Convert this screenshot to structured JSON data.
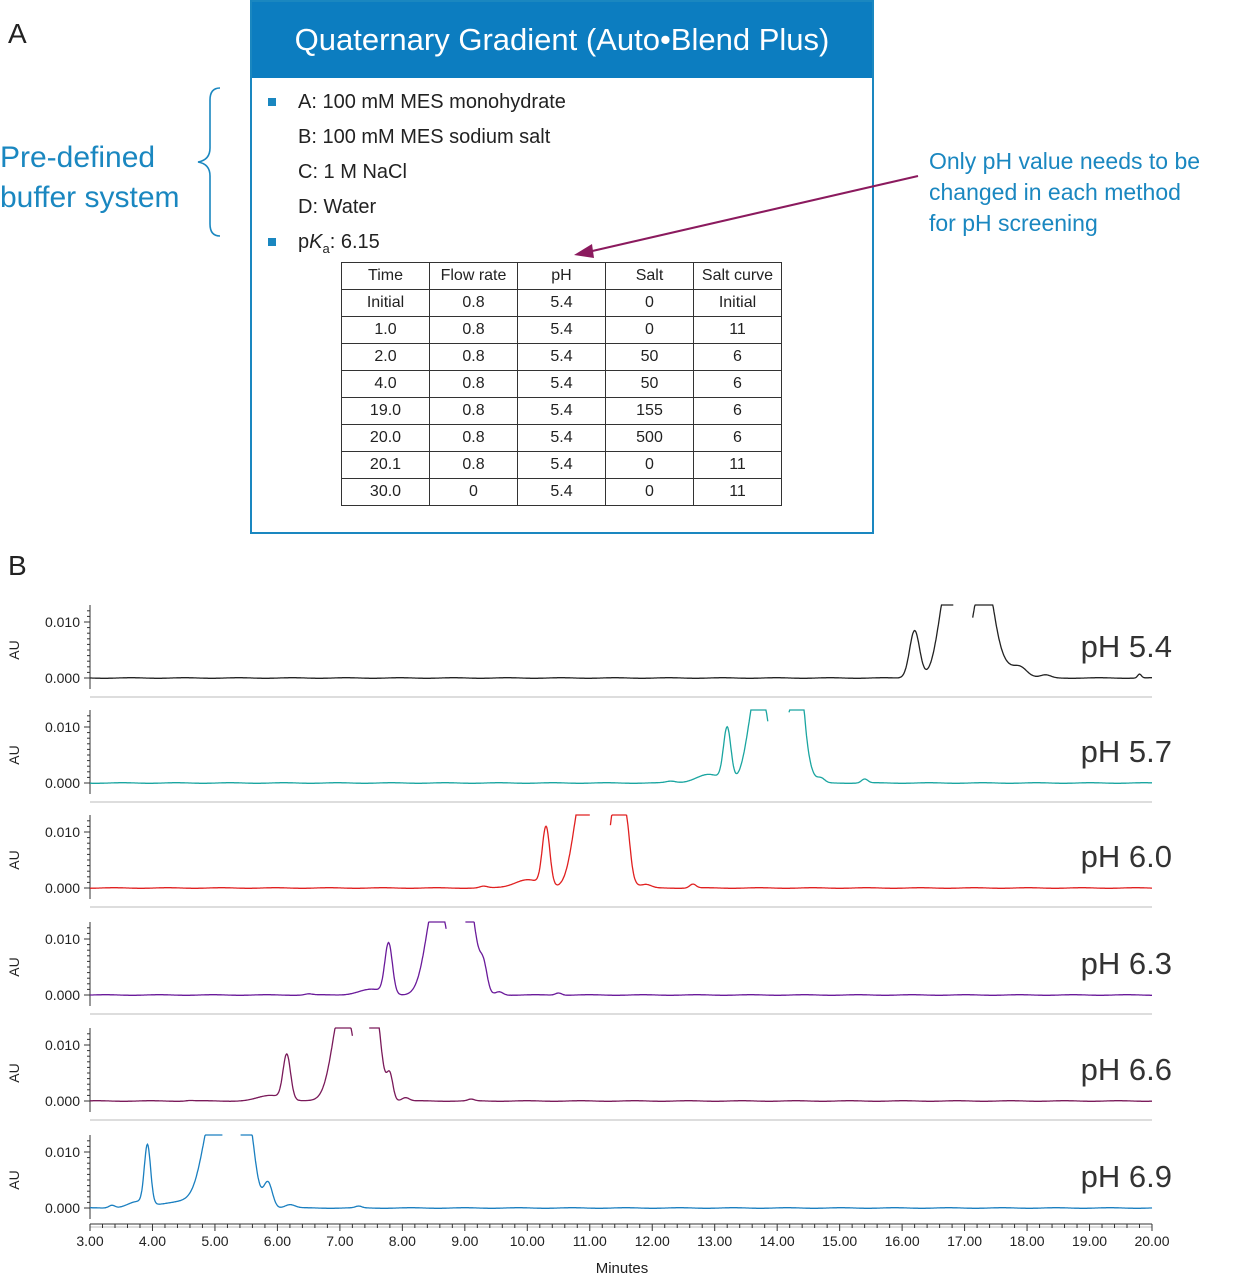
{
  "panel_a": {
    "letter": "A",
    "header": "Quaternary Gradient (Auto•Blend Plus)",
    "side_label_lines": [
      "Pre-defined",
      "buffer system"
    ],
    "buffers": [
      "A: 100 mM MES monohydrate",
      "B: 100 mM MES sodium salt",
      "C: 1 M NaCl",
      "D: Water"
    ],
    "pka": {
      "prefix": "p",
      "k": "K",
      "sub": "a",
      "value": ": 6.15"
    },
    "annotation_lines": [
      "Only pH value needs to be",
      "changed in each method",
      "for pH screening"
    ],
    "colors": {
      "accent": "#1a87c0",
      "header_bg": "#0c7dc0",
      "arrow": "#8b1a5e"
    },
    "table": {
      "headers": [
        "Time",
        "Flow rate",
        "pH",
        "Salt",
        "Salt curve"
      ],
      "rows": [
        [
          "Initial",
          "0.8",
          "5.4",
          "0",
          "Initial"
        ],
        [
          "1.0",
          "0.8",
          "5.4",
          "0",
          "11"
        ],
        [
          "2.0",
          "0.8",
          "5.4",
          "50",
          "6"
        ],
        [
          "4.0",
          "0.8",
          "5.4",
          "50",
          "6"
        ],
        [
          "19.0",
          "0.8",
          "5.4",
          "155",
          "6"
        ],
        [
          "20.0",
          "0.8",
          "5.4",
          "500",
          "6"
        ],
        [
          "20.1",
          "0.8",
          "5.4",
          "0",
          "11"
        ],
        [
          "30.0",
          "0",
          "5.4",
          "0",
          "11"
        ]
      ]
    }
  },
  "panel_b": {
    "letter": "B",
    "chart_data": {
      "type": "line",
      "xlabel": "Minutes",
      "ylabel": "AU",
      "xlim": [
        3.0,
        20.0
      ],
      "ylim": [
        0.0,
        0.012
      ],
      "x_ticks": [
        "3.00",
        "4.00",
        "5.00",
        "6.00",
        "7.00",
        "8.00",
        "9.00",
        "10.00",
        "11.00",
        "12.00",
        "13.00",
        "14.00",
        "15.00",
        "16.00",
        "17.00",
        "18.00",
        "19.00",
        "20.00"
      ],
      "y_ticks": [
        "0.000",
        "0.010"
      ],
      "series": [
        {
          "name": "pH 5.4",
          "color": "#222222",
          "peaks": [
            [
              16.2,
              0.0085,
              0.08
            ],
            [
              16.75,
              0.018,
              0.15
            ],
            [
              17.3,
              0.018,
              0.15
            ],
            [
              17.55,
              0.0025,
              0.25
            ],
            [
              17.9,
              0.0012,
              0.1
            ],
            [
              18.3,
              0.0005,
              0.08
            ],
            [
              19.8,
              0.0007,
              0.03
            ]
          ],
          "gap": [
            16.82,
            17.12
          ]
        },
        {
          "name": "pH 5.7",
          "color": "#1aa5a0",
          "peaks": [
            [
              13.2,
              0.0095,
              0.06
            ],
            [
              12.9,
              0.0015,
              0.2
            ],
            [
              13.7,
              0.018,
              0.15
            ],
            [
              14.3,
              0.018,
              0.13
            ],
            [
              14.38,
              0.004,
              0.05
            ],
            [
              14.7,
              0.0008,
              0.06
            ],
            [
              15.4,
              0.0007,
              0.05
            ],
            [
              12.3,
              0.0003,
              0.08
            ]
          ],
          "gap": [
            13.85,
            14.18
          ]
        },
        {
          "name": "pH 6.0",
          "color": "#e02020",
          "peaks": [
            [
              10.3,
              0.0105,
              0.06
            ],
            [
              10.0,
              0.0015,
              0.2
            ],
            [
              10.9,
              0.018,
              0.15
            ],
            [
              11.45,
              0.018,
              0.12
            ],
            [
              11.6,
              0.004,
              0.05
            ],
            [
              11.9,
              0.0006,
              0.08
            ],
            [
              12.65,
              0.0007,
              0.05
            ],
            [
              9.3,
              0.0003,
              0.06
            ]
          ],
          "gap": [
            11.0,
            11.32
          ]
        },
        {
          "name": "pH 6.3",
          "color": "#6a1a9a",
          "peaks": [
            [
              7.78,
              0.009,
              0.06
            ],
            [
              7.5,
              0.001,
              0.2
            ],
            [
              8.55,
              0.018,
              0.16
            ],
            [
              9.05,
              0.018,
              0.12
            ],
            [
              9.3,
              0.0045,
              0.06
            ],
            [
              9.55,
              0.0006,
              0.06
            ],
            [
              10.5,
              0.0004,
              0.05
            ],
            [
              6.5,
              0.0002,
              0.06
            ]
          ],
          "gap": [
            8.7,
            9.0
          ]
        },
        {
          "name": "pH 6.6",
          "color": "#7a1a5a",
          "peaks": [
            [
              6.15,
              0.008,
              0.06
            ],
            [
              5.9,
              0.001,
              0.2
            ],
            [
              7.05,
              0.018,
              0.16
            ],
            [
              7.55,
              0.018,
              0.1
            ],
            [
              7.8,
              0.0045,
              0.05
            ],
            [
              8.05,
              0.0006,
              0.06
            ],
            [
              9.1,
              0.0003,
              0.05
            ],
            [
              4.6,
              0.0001,
              0.06
            ]
          ],
          "gap": [
            7.2,
            7.46
          ]
        },
        {
          "name": "pH 6.9",
          "color": "#1a7fc0",
          "peaks": [
            [
              3.92,
              0.0105,
              0.05
            ],
            [
              3.75,
              0.001,
              0.15
            ],
            [
              3.35,
              0.0005,
              0.05
            ],
            [
              4.5,
              0.0012,
              0.35
            ],
            [
              5.0,
              0.018,
              0.18
            ],
            [
              5.5,
              0.018,
              0.12
            ],
            [
              5.85,
              0.0045,
              0.07
            ],
            [
              6.2,
              0.0006,
              0.08
            ],
            [
              7.3,
              0.0003,
              0.05
            ]
          ],
          "gap": [
            5.12,
            5.4
          ]
        }
      ]
    }
  }
}
